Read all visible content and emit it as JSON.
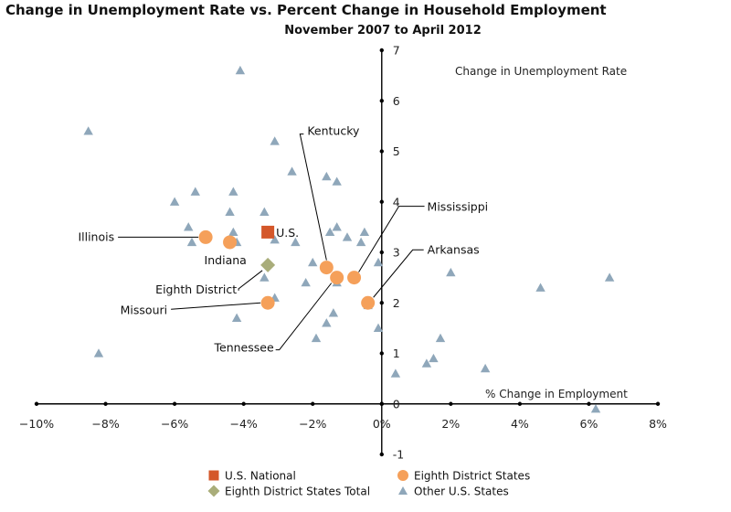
{
  "chart_data": {
    "type": "scatter",
    "title": "Change in Unemployment Rate vs. Percent Change in Household Employment",
    "subtitle": "November 2007 to April 2012",
    "xlabel": "% Change in Employment",
    "ylabel": "Change in Unemployment Rate",
    "xlim": [
      -10,
      8
    ],
    "ylim": [
      -1,
      7
    ],
    "x_ticks": [
      {
        "value": -10,
        "label": "−10%"
      },
      {
        "value": -8,
        "label": "−8%"
      },
      {
        "value": -6,
        "label": "−6%"
      },
      {
        "value": -4,
        "label": "−4%"
      },
      {
        "value": -2,
        "label": "−2%"
      },
      {
        "value": 0,
        "label": "0%"
      },
      {
        "value": 2,
        "label": "2%"
      },
      {
        "value": 4,
        "label": "4%"
      },
      {
        "value": 6,
        "label": "6%"
      },
      {
        "value": 8,
        "label": "8%"
      }
    ],
    "y_ticks": [
      {
        "value": -1,
        "label": "-1"
      },
      {
        "value": 0,
        "label": "0"
      },
      {
        "value": 1,
        "label": "1"
      },
      {
        "value": 2,
        "label": "2"
      },
      {
        "value": 3,
        "label": "3"
      },
      {
        "value": 4,
        "label": "4"
      },
      {
        "value": 5,
        "label": "5"
      },
      {
        "value": 6,
        "label": "6"
      },
      {
        "value": 7,
        "label": "7"
      }
    ],
    "grid": false,
    "legend_position": "bottom",
    "series": [
      {
        "name": "U.S. National",
        "marker": "square",
        "color": "#d4572a",
        "points": [
          {
            "x": -3.3,
            "y": 3.4,
            "label": "U.S."
          }
        ]
      },
      {
        "name": "Eighth District States",
        "marker": "circle",
        "color": "#f5a05a",
        "points": [
          {
            "x": -5.1,
            "y": 3.3,
            "label": "Illinois"
          },
          {
            "x": -4.4,
            "y": 3.2,
            "label": "Indiana"
          },
          {
            "x": -1.6,
            "y": 2.7,
            "label": "Kentucky"
          },
          {
            "x": -1.3,
            "y": 2.5,
            "label": "Tennessee"
          },
          {
            "x": -0.8,
            "y": 2.5,
            "label": "Mississippi"
          },
          {
            "x": -0.4,
            "y": 2.0,
            "label": "Arkansas"
          },
          {
            "x": -3.3,
            "y": 2.0,
            "label": "Missouri"
          }
        ]
      },
      {
        "name": "Eighth District States Total",
        "marker": "diamond",
        "color": "#a9ad7a",
        "points": [
          {
            "x": -3.3,
            "y": 2.75,
            "label": "Eighth District"
          }
        ]
      },
      {
        "name": "Other U.S. States",
        "marker": "triangle",
        "color": "#8fa7ba",
        "points": [
          {
            "x": -4.1,
            "y": 6.6
          },
          {
            "x": -8.5,
            "y": 5.4
          },
          {
            "x": -3.1,
            "y": 5.2
          },
          {
            "x": -2.6,
            "y": 4.6
          },
          {
            "x": -1.6,
            "y": 4.5
          },
          {
            "x": -1.3,
            "y": 4.4
          },
          {
            "x": -5.4,
            "y": 4.2
          },
          {
            "x": -4.3,
            "y": 4.2
          },
          {
            "x": -6.0,
            "y": 4.0
          },
          {
            "x": -4.4,
            "y": 3.8
          },
          {
            "x": -3.4,
            "y": 3.8
          },
          {
            "x": -5.6,
            "y": 3.5
          },
          {
            "x": -4.3,
            "y": 3.4
          },
          {
            "x": -1.3,
            "y": 3.5
          },
          {
            "x": -1.5,
            "y": 3.4
          },
          {
            "x": -0.5,
            "y": 3.4
          },
          {
            "x": -1.0,
            "y": 3.3
          },
          {
            "x": -5.5,
            "y": 3.2
          },
          {
            "x": -4.2,
            "y": 3.2
          },
          {
            "x": -3.1,
            "y": 3.25
          },
          {
            "x": -2.5,
            "y": 3.2
          },
          {
            "x": -0.6,
            "y": 3.2
          },
          {
            "x": -2.0,
            "y": 2.8
          },
          {
            "x": -0.1,
            "y": 2.8
          },
          {
            "x": -1.6,
            "y": 2.7
          },
          {
            "x": -3.4,
            "y": 2.5
          },
          {
            "x": -2.2,
            "y": 2.4
          },
          {
            "x": -1.3,
            "y": 2.4
          },
          {
            "x": 2.0,
            "y": 2.6
          },
          {
            "x": 4.6,
            "y": 2.3
          },
          {
            "x": 6.6,
            "y": 2.5
          },
          {
            "x": -3.1,
            "y": 2.1
          },
          {
            "x": -0.4,
            "y": 1.95
          },
          {
            "x": -1.4,
            "y": 1.8
          },
          {
            "x": -4.2,
            "y": 1.7
          },
          {
            "x": -1.6,
            "y": 1.6
          },
          {
            "x": -0.1,
            "y": 1.5
          },
          {
            "x": -1.9,
            "y": 1.3
          },
          {
            "x": 1.7,
            "y": 1.3
          },
          {
            "x": -8.2,
            "y": 1.0
          },
          {
            "x": 1.5,
            "y": 0.9
          },
          {
            "x": 1.3,
            "y": 0.8
          },
          {
            "x": 3.0,
            "y": 0.7
          },
          {
            "x": 0.4,
            "y": 0.6
          },
          {
            "x": 6.2,
            "y": -0.1
          }
        ]
      }
    ]
  }
}
